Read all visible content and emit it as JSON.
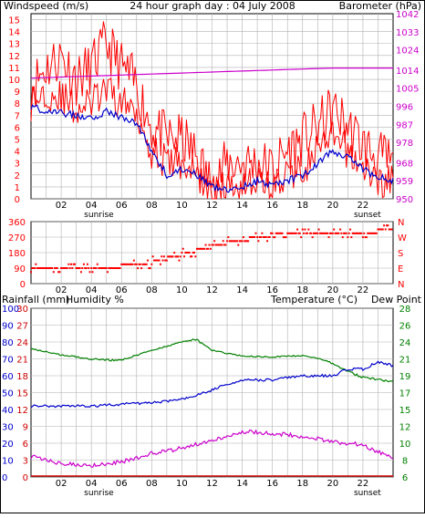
{
  "title": "24 hour graph day : 04 July 2008",
  "colors": {
    "windspeed": "#ff0000",
    "gust": "#ff0000",
    "avg_wind": "#0000cc",
    "barometer": "#cc00cc",
    "direction": "#ff0000",
    "temperature": "#008000",
    "dew_point": "#0000cc",
    "humidity": "#cc00cc",
    "rainfall": "#cc0000",
    "grid": "#b0b0b0",
    "frame": "#000000"
  },
  "labels": {
    "windspeed": "Windspeed (m/s)",
    "barometer": "Barometer (hPa)",
    "rainfall": "Rainfall (mm)",
    "humidity": "Humidity %",
    "temperature": "Temperature (°C)",
    "dew_point": "Dew Point",
    "sunrise": "sunrise",
    "sunset": "sunset"
  },
  "chart_data": [
    {
      "type": "line",
      "name": "wind",
      "x_ticks": [
        "02",
        "04",
        "06",
        "08",
        "10",
        "12",
        "14",
        "16",
        "18",
        "20",
        "22"
      ],
      "x_range_hours": [
        0,
        24
      ],
      "y_left_label": "Windspeed (m/s)",
      "y_left_ticks": [
        0,
        1,
        2,
        3,
        4,
        5,
        6,
        7,
        8,
        9,
        10,
        11,
        12,
        13,
        14,
        15
      ],
      "y_left_range": [
        0,
        15.5
      ],
      "y_right_label": "Barometer (hPa)",
      "y_right_ticks": [
        950,
        959,
        968,
        978,
        987,
        996,
        1005,
        1014,
        1024,
        1033,
        1042
      ],
      "y_right_range": [
        950,
        1042
      ],
      "grid": true,
      "gust_hours": [
        0,
        1,
        2,
        3,
        4,
        5,
        6,
        7,
        8,
        9,
        10,
        11,
        12,
        13,
        14,
        15,
        16,
        17,
        18,
        19,
        20,
        21,
        22,
        23,
        24
      ],
      "gust_values": [
        9.5,
        11,
        12,
        10,
        11,
        13,
        11,
        9.5,
        6,
        5,
        5,
        3.5,
        1,
        3,
        3,
        3,
        2.5,
        4,
        5,
        6,
        7.5,
        6,
        4.5,
        3.5,
        3
      ],
      "windspeed_hours": [
        0,
        1,
        2,
        3,
        4,
        5,
        6,
        7,
        8,
        9,
        10,
        11,
        12,
        13,
        14,
        15,
        16,
        17,
        18,
        19,
        20,
        21,
        22,
        23,
        24
      ],
      "windspeed_values": [
        8,
        9,
        8.5,
        7.5,
        8,
        9,
        8,
        7.5,
        4,
        3,
        3,
        2,
        0.5,
        1,
        1.5,
        1.5,
        1,
        2,
        2.5,
        4,
        5,
        4,
        2.5,
        1.5,
        1.5
      ],
      "avg_hours": [
        0,
        1,
        2,
        3,
        4,
        5,
        6,
        7,
        8,
        9,
        10,
        11,
        12,
        13,
        14,
        15,
        16,
        17,
        18,
        19,
        20,
        21,
        22,
        23,
        24
      ],
      "avg_values": [
        7.8,
        7.3,
        7.2,
        7,
        6.8,
        7.3,
        6.8,
        6.3,
        4,
        2,
        2.5,
        2,
        1,
        0.8,
        1,
        1.5,
        1.2,
        1.5,
        2,
        3,
        4,
        3.5,
        2.5,
        1.8,
        1.5
      ],
      "barometer_hours": [
        0,
        4,
        8,
        12,
        16,
        20,
        24
      ],
      "barometer_values": [
        1010,
        1011,
        1012,
        1013,
        1014,
        1015,
        1015
      ]
    },
    {
      "type": "scatter",
      "name": "wind_direction",
      "x_ticks": [
        "02",
        "04",
        "06",
        "08",
        "10",
        "12",
        "14",
        "16",
        "18",
        "20",
        "22"
      ],
      "y_left_ticks": [
        0,
        90,
        180,
        270,
        360
      ],
      "y_right_ticks": [
        "N",
        "E",
        "S",
        "W",
        "N"
      ],
      "y_range": [
        0,
        360
      ],
      "hours": [
        0,
        0.5,
        1,
        1.5,
        2,
        2.5,
        3,
        3.5,
        4,
        4.5,
        5,
        5.5,
        6,
        6.5,
        7,
        7.5,
        8,
        8.5,
        9,
        9.5,
        10,
        10.5,
        11,
        11.5,
        12,
        12.5,
        13,
        13.5,
        14,
        14.5,
        15,
        15.5,
        16,
        16.5,
        17,
        17.5,
        18,
        18.5,
        19,
        19.5,
        20,
        20.5,
        21,
        21.5,
        22,
        22.5,
        23,
        23.5
      ],
      "degrees": [
        90,
        90,
        90,
        90,
        90,
        90,
        90,
        90,
        90,
        90,
        90,
        90,
        112,
        112,
        112,
        112,
        135,
        135,
        157,
        157,
        180,
        180,
        202,
        202,
        225,
        225,
        247,
        247,
        247,
        270,
        270,
        270,
        292,
        292,
        292,
        292,
        292,
        292,
        292,
        292,
        292,
        292,
        292,
        292,
        292,
        292,
        315,
        315
      ]
    },
    {
      "type": "line",
      "name": "temperature_humidity",
      "x_ticks": [
        "02",
        "04",
        "06",
        "08",
        "10",
        "12",
        "14",
        "16",
        "18",
        "20",
        "22"
      ],
      "y_left_label": "Rainfall (mm)",
      "y_left_ticks_rain": [
        0,
        3,
        6,
        9,
        12,
        15,
        18,
        21,
        24,
        27,
        30
      ],
      "y_left_ticks_humidity": [
        0,
        10,
        20,
        30,
        40,
        50,
        60,
        70,
        80,
        90,
        100
      ],
      "y_right_label": "Temperature (°C)",
      "y_right_ticks": [
        6,
        8,
        10,
        12,
        15,
        17,
        19,
        21,
        24,
        26,
        28
      ],
      "y_right_range": [
        6,
        28
      ],
      "grid": true,
      "temperature_hours": [
        0,
        2,
        4,
        6,
        8,
        10,
        11,
        12,
        14,
        16,
        18,
        20,
        21,
        22,
        24
      ],
      "temperature_values": [
        22.8,
        21.7,
        21,
        20.8,
        22.5,
        24,
        24.3,
        22.5,
        21.5,
        21.3,
        21.6,
        20.5,
        19.5,
        18.8,
        18.3
      ],
      "dew_point_hours": [
        0,
        2,
        4,
        6,
        8,
        10,
        12,
        13,
        14,
        16,
        18,
        20,
        21,
        22,
        23,
        24
      ],
      "dew_point_values": [
        15.4,
        15.4,
        15.4,
        15.6,
        15.8,
        16.2,
        17.3,
        18,
        18.5,
        18.5,
        19,
        19,
        19.8,
        19.8,
        20.6,
        20.2
      ],
      "humidity_hours": [
        0,
        2,
        4,
        6,
        8,
        10,
        12,
        13,
        14,
        16,
        18,
        20,
        22,
        23,
        24
      ],
      "humidity_values": [
        12,
        8,
        7,
        9,
        14,
        17,
        22,
        24,
        27,
        26,
        24,
        21,
        19,
        15,
        11
      ],
      "rainfall_hours": [
        0,
        24
      ],
      "rainfall_values": [
        0,
        0
      ]
    }
  ]
}
